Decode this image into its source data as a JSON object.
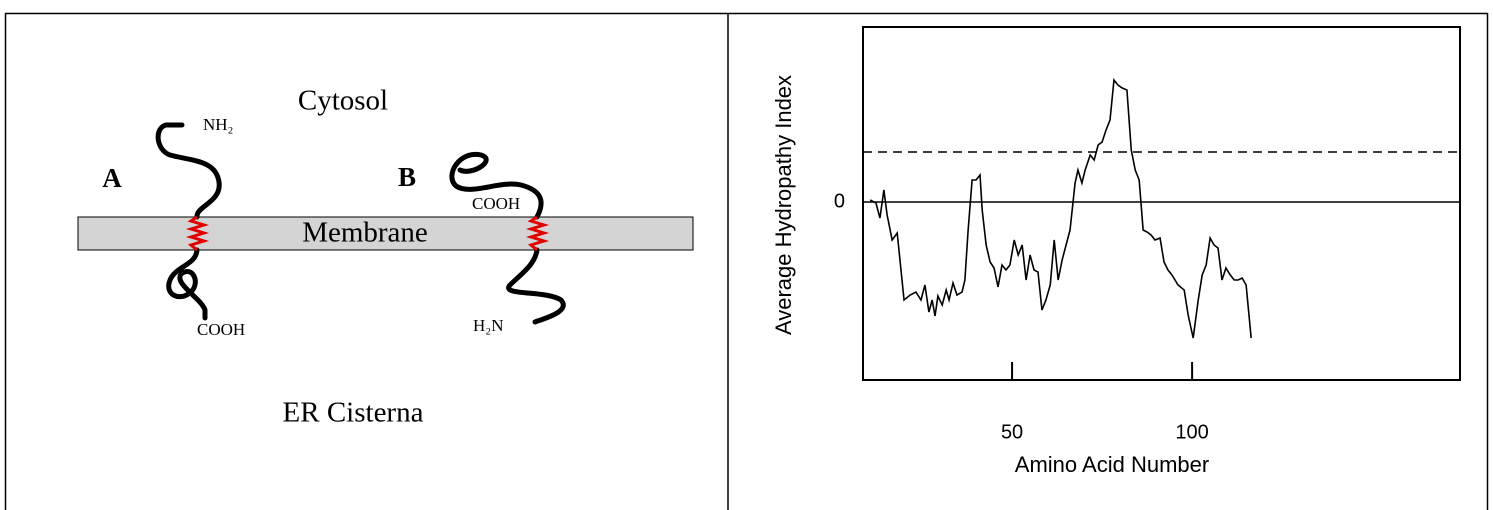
{
  "diagram": {
    "labels": {
      "cytosol": "Cytosol",
      "a": "A",
      "b": "B",
      "nh2": "NH₂",
      "membrane": "Membrane",
      "cooh_b": "COOH",
      "cooh_a": "COOH",
      "h2n": "H₂N",
      "er": "ER Cisterna"
    }
  },
  "chart_data": {
    "type": "line",
    "ylabel": "Average Hydropathy Index",
    "xlabel": "Amino Acid Number",
    "x": [
      10.6,
      12.2,
      13.3,
      14.4,
      15.3,
      16.7,
      18.1,
      20,
      21.7,
      23.3,
      24.7,
      25.8,
      26.9,
      27.8,
      28.6,
      29.4,
      30.6,
      31.7,
      32.5,
      33.6,
      34.7,
      36.1,
      36.9,
      37.8,
      38.9,
      40,
      41.1,
      41.7,
      42.8,
      43.9,
      45,
      46.1,
      47.2,
      48.3,
      49.4,
      50.6,
      51.7,
      52.8,
      53.9,
      55,
      56.1,
      57.2,
      58.3,
      59.4,
      60.6,
      61.7,
      62.8,
      63.9,
      65,
      66.1,
      67.5,
      68.3,
      69.4,
      70.3,
      71.7,
      72.8,
      73.9,
      75,
      76.1,
      77.2,
      78.3,
      79.4,
      80.6,
      81.9,
      83.1,
      84.2,
      85.3,
      86.4,
      87.5,
      88.6,
      89.7,
      91.1,
      92.2,
      93.3,
      94.4,
      96.1,
      97.8,
      98.9,
      100.3,
      101.7,
      102.8,
      103.9,
      105,
      106.1,
      107.2,
      108.3,
      109.4,
      110.6,
      111.7,
      112.8,
      113.9,
      115,
      116.4
    ],
    "values": [
      0.08,
      -0.04,
      -0.64,
      0.48,
      -0.52,
      -1.52,
      -1.24,
      -3.92,
      -3.72,
      -3.6,
      -3.92,
      -3.32,
      -4.4,
      -3.92,
      -4.56,
      -3.76,
      -4.12,
      -3.52,
      -3.92,
      -3.24,
      -3.72,
      -3.6,
      -3.12,
      -1.12,
      0.88,
      0.88,
      1.08,
      -0.32,
      -1.72,
      -2.4,
      -2.64,
      -3.4,
      -2.52,
      -2.72,
      -2.52,
      -1.52,
      -2.12,
      -1.72,
      -3.12,
      -2.12,
      -2.72,
      -2.8,
      -4.32,
      -3.92,
      -3.32,
      -1.52,
      -3.12,
      -2.32,
      -1.72,
      -1.12,
      0.76,
      1.28,
      0.76,
      1.28,
      1.88,
      1.68,
      2.28,
      2.4,
      2.88,
      3.28,
      4.88,
      4.68,
      4.56,
      4.48,
      2.08,
      1.28,
      0.88,
      -1.12,
      -1.2,
      -1.32,
      -1.52,
      -1.44,
      -2.4,
      -2.72,
      -2.92,
      -3.32,
      -3.52,
      -4.52,
      -5.44,
      -3.92,
      -2.92,
      -2.52,
      -1.44,
      -1.72,
      -1.84,
      -3.12,
      -2.64,
      -2.92,
      -3.12,
      -3.12,
      -3.04,
      -3.32,
      -5.44
    ],
    "color": "#000000",
    "xlim": [
      8.6,
      174.4
    ],
    "xticks": [
      50,
      100
    ],
    "ylim": [
      -7.12,
      7.0
    ],
    "yticks": [
      0
    ],
    "hlines": [
      {
        "value": 0,
        "style": "solid"
      },
      {
        "value": 2,
        "style": "dashed"
      }
    ]
  }
}
